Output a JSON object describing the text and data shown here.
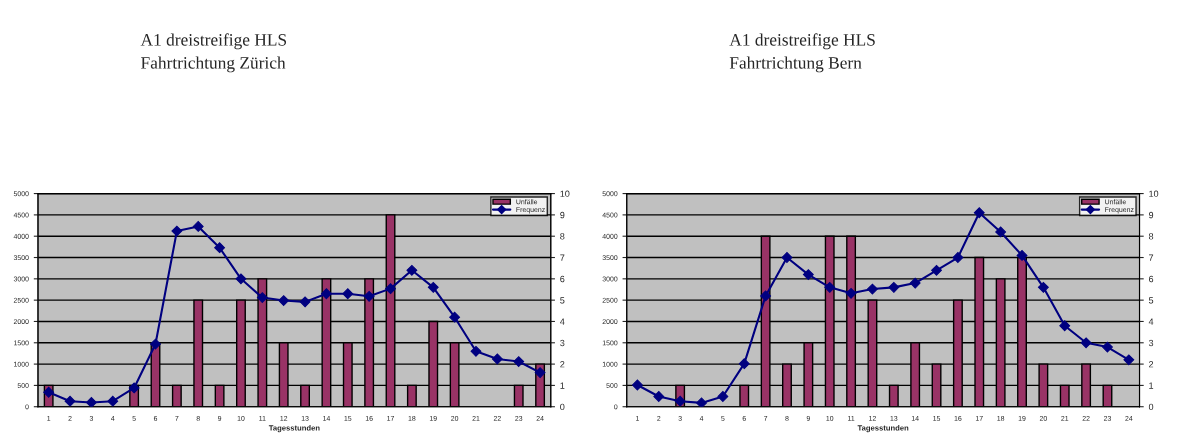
{
  "chart_data": [
    {
      "type": "bar",
      "title": "A1 dreistreifige HLS\nFahrtrichtung Zürich",
      "xlabel": "Tagesstunden",
      "categories": [
        "1",
        "2",
        "3",
        "4",
        "5",
        "6",
        "7",
        "8",
        "9",
        "10",
        "11",
        "12",
        "13",
        "14",
        "15",
        "16",
        "17",
        "18",
        "19",
        "20",
        "21",
        "22",
        "23",
        "24"
      ],
      "series": [
        {
          "name": "Unfälle",
          "axis": "y2",
          "color": "#993366",
          "values": [
            1,
            0,
            0,
            0,
            1,
            3,
            1,
            5,
            1,
            5,
            6,
            3,
            1,
            6,
            3,
            6,
            9,
            1,
            4,
            3,
            0,
            0,
            1,
            2
          ]
        },
        {
          "name": "Frequenz",
          "type": "line",
          "axis": "y",
          "color": "#000080",
          "values": [
            340,
            130,
            100,
            130,
            440,
            1470,
            4120,
            4230,
            3730,
            3000,
            2560,
            2490,
            2460,
            2650,
            2650,
            2590,
            2770,
            3200,
            2800,
            2100,
            1300,
            1120,
            1060,
            800
          ]
        }
      ],
      "ylim": [
        0,
        5000
      ],
      "yticks": [
        0,
        500,
        1000,
        1500,
        2000,
        2500,
        3000,
        3500,
        4000,
        4500,
        5000
      ],
      "y2lim": [
        0,
        10
      ],
      "y2ticks": [
        0,
        1,
        2,
        3,
        4,
        5,
        6,
        7,
        8,
        9,
        10
      ],
      "grid": "y",
      "legend": "top right",
      "marker": "diamond",
      "line_style": "solid"
    },
    {
      "type": "bar",
      "title": "A1 dreistreifige HLS\nFahrtrichtung Bern",
      "xlabel": "Tagesstunden",
      "categories": [
        "1",
        "2",
        "3",
        "4",
        "5",
        "6",
        "7",
        "8",
        "9",
        "10",
        "11",
        "12",
        "13",
        "14",
        "15",
        "16",
        "17",
        "18",
        "19",
        "20",
        "21",
        "22",
        "23",
        "24"
      ],
      "series": [
        {
          "name": "Unfälle",
          "axis": "y2",
          "color": "#993366",
          "values": [
            0,
            0,
            1,
            0,
            0,
            1,
            8,
            2,
            3,
            8,
            8,
            5,
            1,
            3,
            2,
            5,
            7,
            6,
            7,
            2,
            1,
            2,
            1,
            0
          ]
        },
        {
          "name": "Frequenz",
          "type": "line",
          "axis": "y",
          "color": "#000080",
          "values": [
            510,
            240,
            130,
            90,
            240,
            1010,
            2600,
            3500,
            3100,
            2800,
            2660,
            2760,
            2800,
            2900,
            3200,
            3500,
            4550,
            4100,
            3550,
            2800,
            1900,
            1500,
            1400,
            1100
          ]
        }
      ],
      "ylim": [
        0,
        5000
      ],
      "yticks": [
        0,
        500,
        1000,
        1500,
        2000,
        2500,
        3000,
        3500,
        4000,
        4500,
        5000
      ],
      "y2lim": [
        0,
        10
      ],
      "y2ticks": [
        0,
        1,
        2,
        3,
        4,
        5,
        6,
        7,
        8,
        9,
        10
      ],
      "grid": "y",
      "legend": "top right",
      "marker": "diamond",
      "line_style": "solid"
    }
  ]
}
